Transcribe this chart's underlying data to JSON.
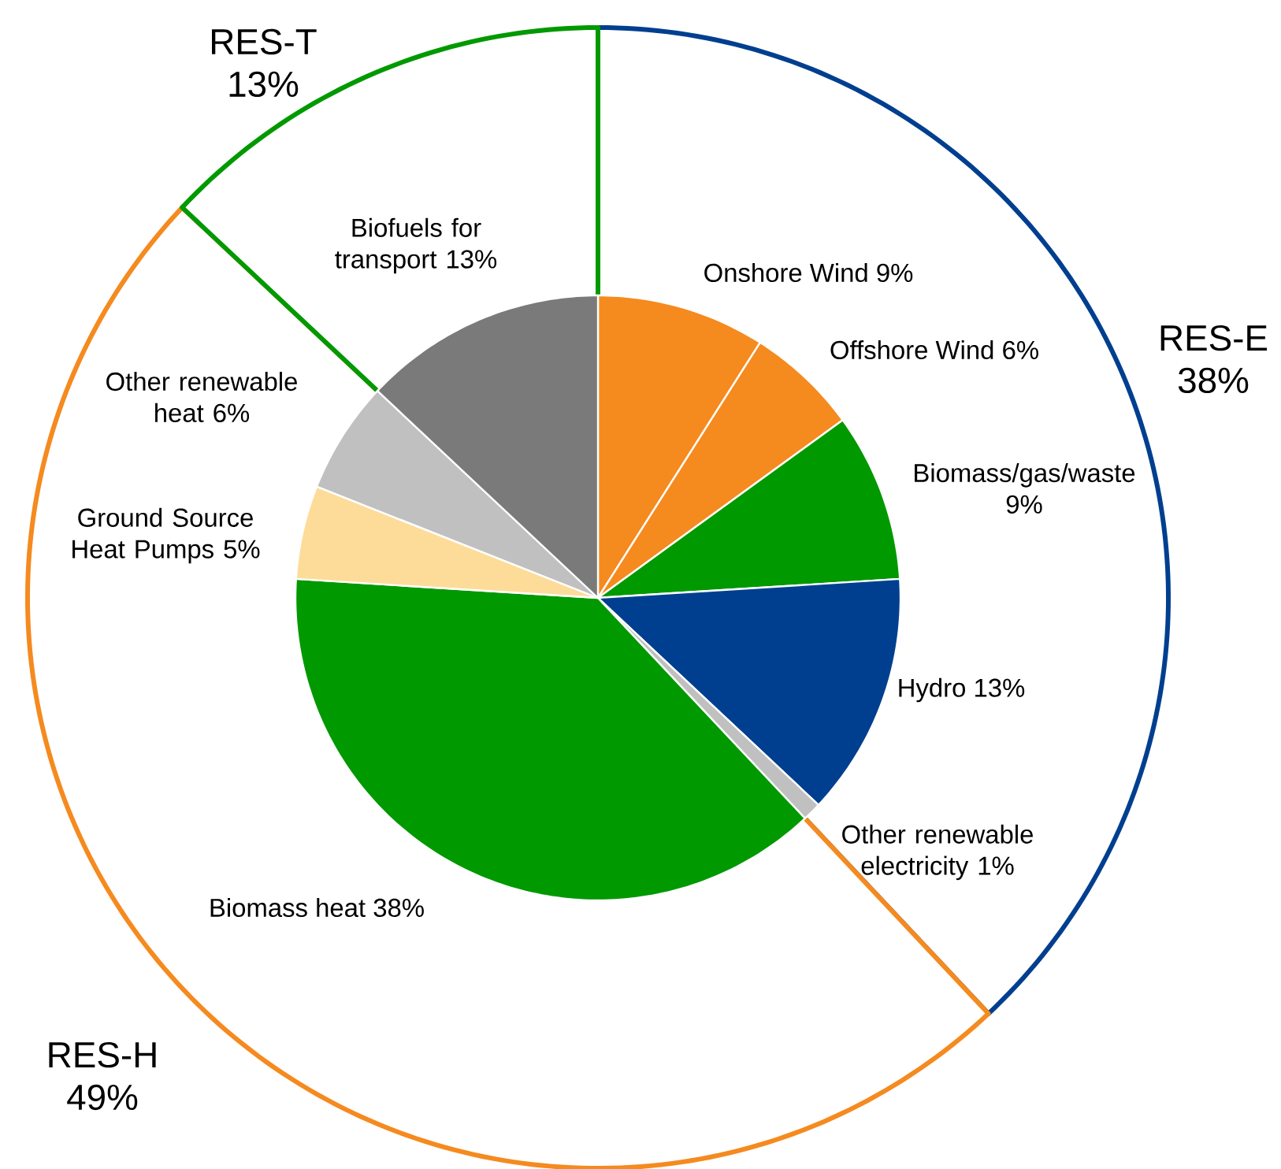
{
  "chart_data": [
    {
      "type": "pie",
      "categories": [
        "Onshore Wind",
        "Offshore Wind",
        "Biomass/gas/waste",
        "Hydro",
        "Other renewable electricity",
        "Biomass heat",
        "Ground Source Heat Pumps",
        "Other renewable heat",
        "Biofuels for transport"
      ],
      "values": [
        9,
        6,
        9,
        13,
        1,
        38,
        5,
        6,
        13
      ],
      "value_labels": [
        "9%",
        "6%",
        "9%",
        "13%",
        "1%",
        "38%",
        "5%",
        "6%",
        "13%"
      ],
      "colors": [
        "#f58a1f",
        "#f58a1f",
        "#009900",
        "#003f8f",
        "#c0c0c0",
        "#009900",
        "#fddc9a",
        "#c0c0c0",
        "#7a7a7a"
      ]
    },
    {
      "type": "donut",
      "categories": [
        "RES-E",
        "RES-H",
        "RES-T"
      ],
      "values": [
        38,
        49,
        13
      ],
      "value_labels": [
        "38%",
        "49%",
        "13%"
      ],
      "colors": [
        "#003f8f",
        "#f58a1f",
        "#009900"
      ]
    }
  ]
}
